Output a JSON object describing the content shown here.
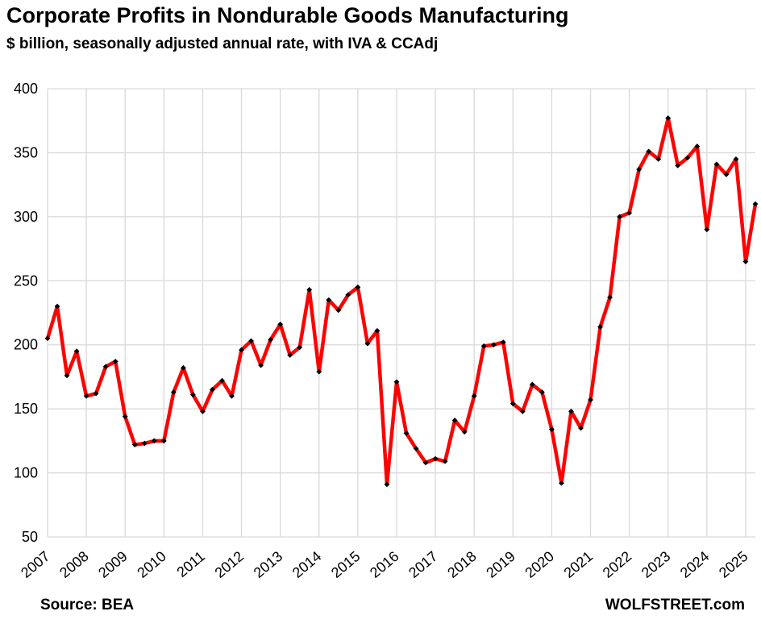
{
  "header": {
    "title": "Corporate Profits in Nondurable Goods Manufacturing",
    "subtitle": "$ billion, seasonally adjusted annual rate, with IVA & CCAdj"
  },
  "footer": {
    "source": "Source: BEA",
    "brand": "WOLFSTREET.com"
  },
  "colors": {
    "line": "#ff0000",
    "marker": "#000000",
    "grid": "#d9d9d9"
  },
  "chart_data": {
    "type": "line",
    "title": "Corporate Profits in Nondurable Goods Manufacturing",
    "subtitle": "$ billion, seasonally adjusted annual rate, with IVA & CCAdj",
    "xlabel": "",
    "ylabel": "",
    "ylim": [
      50,
      400
    ],
    "yticks": [
      50,
      100,
      150,
      200,
      250,
      300,
      350,
      400
    ],
    "xticks": [
      "2007",
      "2008",
      "2009",
      "2010",
      "2011",
      "2012",
      "2013",
      "2014",
      "2015",
      "2016",
      "2017",
      "2018",
      "2019",
      "2020",
      "2021",
      "2022",
      "2023",
      "2024",
      "2025"
    ],
    "xlim": [
      2007.0,
      2025.25
    ],
    "grid": true,
    "legend": "none",
    "markers": true,
    "series": [
      {
        "x": [
          2007.0,
          2007.25,
          2007.5,
          2007.75,
          2008.0,
          2008.25,
          2008.5,
          2008.75,
          2009.0,
          2009.25,
          2009.5,
          2009.75,
          2010.0,
          2010.25,
          2010.5,
          2010.75,
          2011.0,
          2011.25,
          2011.5,
          2011.75,
          2012.0,
          2012.25,
          2012.5,
          2012.75,
          2013.0,
          2013.25,
          2013.5,
          2013.75,
          2014.0,
          2014.25,
          2014.5,
          2014.75,
          2015.0,
          2015.25,
          2015.5,
          2015.75,
          2016.0,
          2016.25,
          2016.5,
          2016.75,
          2017.0,
          2017.25,
          2017.5,
          2017.75,
          2018.0,
          2018.25,
          2018.5,
          2018.75,
          2019.0,
          2019.25,
          2019.5,
          2019.75,
          2020.0,
          2020.25,
          2020.5,
          2020.75,
          2021.0,
          2021.25,
          2021.5,
          2021.75,
          2022.0,
          2022.25,
          2022.5,
          2022.75,
          2023.0,
          2023.25,
          2023.5,
          2023.75,
          2024.0,
          2024.25,
          2024.5,
          2024.75,
          2025.0,
          2025.25
        ],
        "values": [
          205,
          230,
          176,
          195,
          160,
          162,
          183,
          187,
          144,
          122,
          123,
          125,
          125,
          163,
          182,
          161,
          148,
          165,
          172,
          160,
          196,
          203,
          184,
          204,
          216,
          192,
          198,
          243,
          179,
          235,
          227,
          239,
          245,
          201,
          211,
          91,
          171,
          131,
          119,
          108,
          111,
          109,
          141,
          132,
          160,
          199,
          200,
          202,
          154,
          148,
          169,
          163,
          134,
          92,
          148,
          135,
          157,
          214,
          237,
          300,
          303,
          337,
          351,
          345,
          377,
          340,
          346,
          355,
          290,
          341,
          333,
          345,
          265,
          310
        ]
      }
    ]
  }
}
